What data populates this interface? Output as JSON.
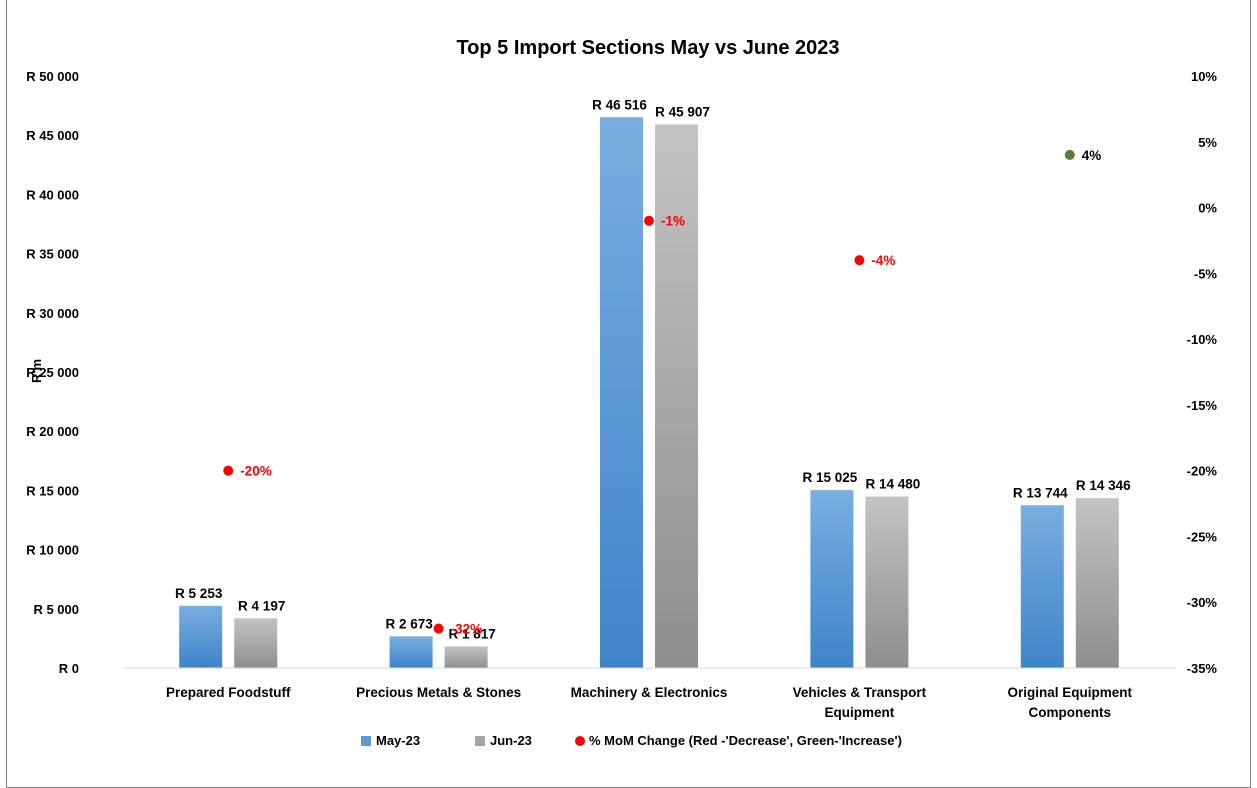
{
  "chart_data": {
    "type": "bar",
    "title": "Top 5 Import Sections  May vs June 2023",
    "ylabel": "R'm",
    "ylim": [
      0,
      50000
    ],
    "y_ticks": [
      "R 0",
      "R 5 000",
      "R 10 000",
      "R 15 000",
      "R 20 000",
      "R 25 000",
      "R 30 000",
      "R 35 000",
      "R 40 000",
      "R 45 000",
      "R 50 000"
    ],
    "y2lim": [
      -35,
      10
    ],
    "y2_ticks": [
      "-35%",
      "-30%",
      "-25%",
      "-20%",
      "-15%",
      "-10%",
      "-5%",
      "0%",
      "5%",
      "10%"
    ],
    "categories": [
      [
        "Prepared Foodstuff"
      ],
      [
        "Precious Metals & Stones"
      ],
      [
        "Machinery & Electronics"
      ],
      [
        "Vehicles & Transport",
        "Equipment"
      ],
      [
        "Original Equipment",
        "Components"
      ]
    ],
    "series": [
      {
        "name": "May-23",
        "color": "#5b9bd5",
        "values": [
          5253,
          2673,
          46516,
          15025,
          13744
        ],
        "labels": [
          "R 5 253",
          "R 2 673",
          "R 46 516",
          "R 15 025",
          "R 13 744"
        ]
      },
      {
        "name": "Jun-23",
        "color": "#a5a5a5",
        "values": [
          4197,
          1817,
          45907,
          14480,
          14346
        ],
        "labels": [
          "R 4 197",
          "R 1 817",
          "R 45 907",
          "R 14 480",
          "R 14 346"
        ]
      }
    ],
    "mom_change": {
      "name": "% MoM Change (Red -'Decrease', Green-'Increase')",
      "values": [
        -20,
        -32,
        -1,
        -4,
        4
      ],
      "labels": [
        "-20%",
        "-32%",
        "-1%",
        "-4%",
        "4%"
      ],
      "decrease_color": "#ff0000",
      "increase_color": "#548235"
    },
    "grid": false,
    "legend_position": "bottom"
  }
}
